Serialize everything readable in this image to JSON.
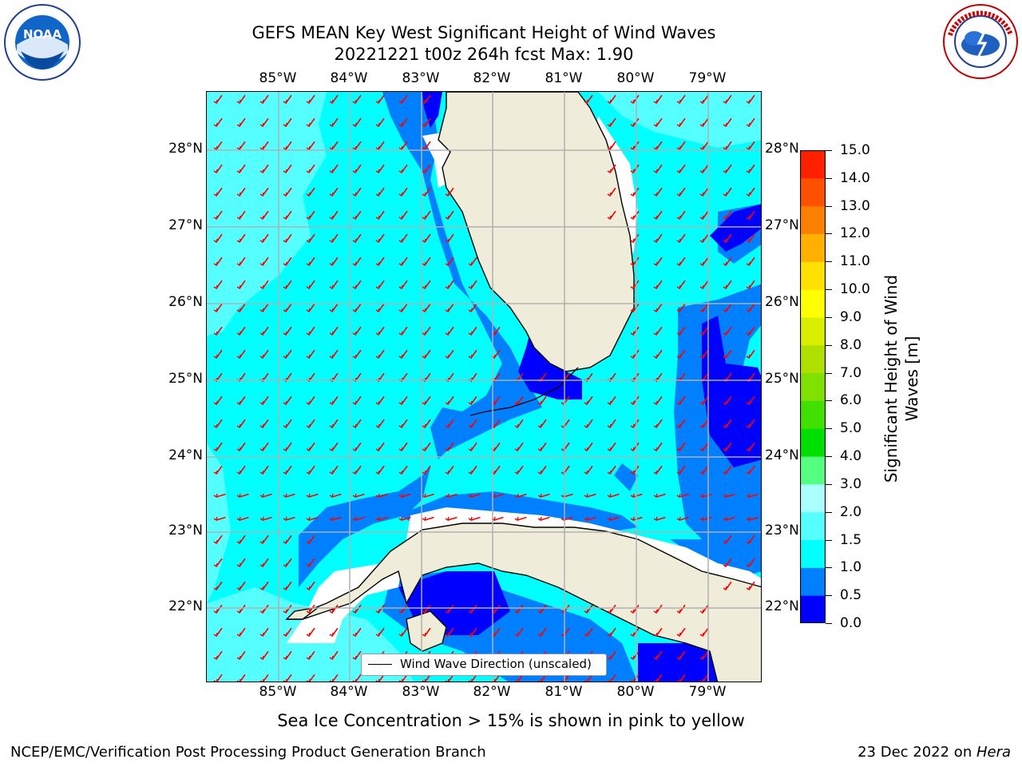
{
  "title": {
    "line1": "GEFS MEAN Key West Significant Height of Wind Waves",
    "line2": "20221221 t00z 264h fcst   Max: 1.90"
  },
  "map": {
    "lon_labels": [
      "85°W",
      "84°W",
      "83°W",
      "82°W",
      "81°W",
      "80°W",
      "79°W"
    ],
    "lat_labels": [
      "28°N",
      "27°N",
      "26°N",
      "25°N",
      "24°N",
      "23°N",
      "22°N"
    ],
    "legend_label": "Wind Wave Direction (unscaled)",
    "colors": {
      "water_light": "#00ffff",
      "water_pale": "#55ffff",
      "water_mid": "#0080ff",
      "water_deep": "#0000ff",
      "land": "#efedda",
      "arrow": "#ff0000",
      "grid": "#b0b0b0"
    }
  },
  "colorbar": {
    "label_line1": "Significant Height of Wind",
    "label_line2": "Waves [m]",
    "ticks": [
      "15.0",
      "14.0",
      "13.0",
      "12.0",
      "11.0",
      "10.0",
      "9.0",
      "8.0",
      "7.0",
      "6.0",
      "5.0",
      "4.0",
      "3.0",
      "2.0",
      "1.5",
      "1.0",
      "0.5",
      "0.0"
    ],
    "bands": [
      "#0000ff",
      "#0080ff",
      "#00ffff",
      "#55ffff",
      "#aaffff",
      "#55ff80",
      "#00e000",
      "#40e000",
      "#80e000",
      "#b0e000",
      "#d8f000",
      "#ffff00",
      "#ffe000",
      "#ffb000",
      "#ff8000",
      "#ff5000",
      "#ff2000"
    ]
  },
  "footer": {
    "center": "Sea Ice Concentration > 15% is shown in pink to yellow",
    "left": "NCEP/EMC/Verification Post Processing Product Generation Branch",
    "right_prefix": "23 Dec 2022 on ",
    "right_italic": "Hera"
  },
  "logos": {
    "noaa_text": "NOAA",
    "nws_text": "NATIONAL WEATHER SERVICE"
  }
}
